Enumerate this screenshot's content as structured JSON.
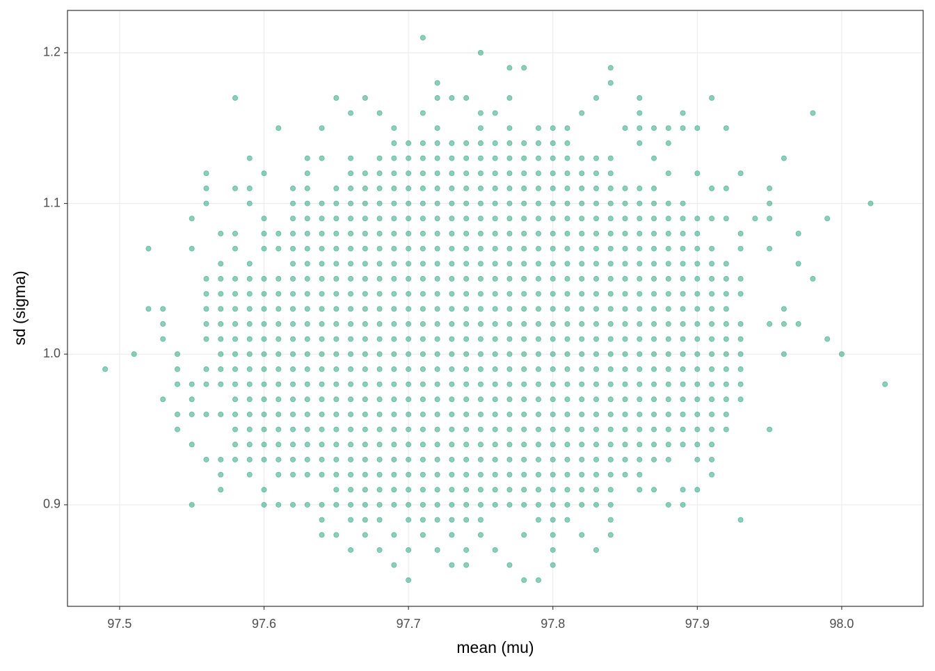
{
  "chart_data": {
    "type": "scatter",
    "x_label": "mean (mu)",
    "y_label": "sd (sigma)",
    "color": "#1b9e77",
    "grid": true,
    "xlim": [
      97.4639,
      98.0564
    ],
    "ylim": [
      0.8326,
      1.2281
    ],
    "xticks": [
      97.5,
      97.6,
      97.7,
      97.8,
      97.9,
      {
        "value": 98,
        "label": "98.0"
      }
    ],
    "yticks": [
      0.9,
      {
        "value": 1,
        "label": "1.0"
      },
      1.1,
      1.2
    ],
    "rows": [
      {
        "y": 1.21,
        "x": [
          97.71
        ]
      },
      {
        "y": 1.2,
        "x": [
          97.75
        ]
      },
      {
        "y": 1.19,
        "x": [
          97.77,
          97.78,
          97.84
        ]
      },
      {
        "y": 1.18,
        "x": [
          97.72,
          97.84
        ]
      },
      {
        "y": 1.17,
        "x": [
          97.58,
          97.65,
          97.67,
          97.72,
          97.73,
          97.74,
          97.77,
          97.83,
          97.86,
          97.91
        ]
      },
      {
        "y": 1.16,
        "x": [
          97.66,
          97.68,
          97.71,
          97.75,
          97.76,
          97.82,
          97.86,
          97.89,
          97.98
        ]
      },
      {
        "y": 1.15,
        "x": [
          97.61,
          97.64,
          97.69,
          97.72,
          97.75,
          97.77,
          97.79,
          97.8,
          97.81,
          97.85,
          97.86,
          97.87,
          97.88,
          97.89,
          97.9,
          97.92
        ]
      },
      {
        "y": 1.14,
        "x": [
          97.69,
          97.7,
          97.71,
          97.72,
          97.73,
          97.74,
          97.75,
          97.76,
          97.77,
          97.78,
          97.79,
          97.8,
          97.81,
          97.86,
          97.88
        ]
      },
      {
        "y": 1.13,
        "x": [
          97.59,
          97.63,
          97.64,
          97.66,
          97.68,
          97.69,
          97.7,
          97.71,
          97.72,
          97.73,
          97.74,
          97.75,
          97.76,
          97.77,
          97.78,
          97.79,
          97.8,
          97.81,
          97.82,
          97.83,
          97.84,
          97.87,
          97.96
        ]
      },
      {
        "y": 1.12,
        "x": [
          97.56,
          97.6,
          97.63,
          97.66,
          97.67,
          97.68,
          97.69,
          97.7,
          97.71,
          97.72,
          97.73,
          97.74,
          97.75,
          97.76,
          97.77,
          97.78,
          97.79,
          97.8,
          97.81,
          97.82,
          97.83,
          97.84,
          97.88,
          97.9,
          97.93
        ]
      },
      {
        "y": 1.11,
        "x": [
          97.56,
          97.58,
          97.59,
          97.62,
          97.63,
          97.65,
          97.66,
          97.67,
          97.68,
          97.69,
          97.7,
          97.71,
          97.72,
          97.73,
          97.74,
          97.75,
          97.76,
          97.77,
          97.78,
          97.79,
          97.8,
          97.81,
          97.82,
          97.83,
          97.84,
          97.85,
          97.86,
          97.87,
          97.91,
          97.92,
          97.95
        ]
      },
      {
        "y": 1.1,
        "x": [
          97.56,
          97.59,
          97.62,
          97.63,
          97.64,
          97.65,
          97.66,
          97.67,
          97.68,
          97.69,
          97.7,
          97.71,
          97.72,
          97.73,
          97.74,
          97.75,
          97.76,
          97.77,
          97.78,
          97.79,
          97.8,
          97.81,
          97.82,
          97.83,
          97.84,
          97.85,
          97.86,
          97.87,
          97.88,
          97.89,
          97.95,
          98.02
        ]
      },
      {
        "y": 1.09,
        "x": [
          97.55,
          97.6,
          97.62,
          97.63,
          97.64,
          97.65,
          97.66,
          97.67,
          97.68,
          97.69,
          97.7,
          97.71,
          97.72,
          97.73,
          97.74,
          97.75,
          97.76,
          97.77,
          97.78,
          97.79,
          97.8,
          97.81,
          97.82,
          97.83,
          97.84,
          97.85,
          97.86,
          97.87,
          97.88,
          97.89,
          97.9,
          97.91,
          97.92,
          97.94,
          97.95,
          97.99
        ]
      },
      {
        "y": 1.08,
        "x": [
          97.57,
          97.58,
          97.6,
          97.61,
          97.62,
          97.63,
          97.64,
          97.65,
          97.66,
          97.67,
          97.68,
          97.69,
          97.7,
          97.71,
          97.72,
          97.73,
          97.74,
          97.75,
          97.76,
          97.77,
          97.78,
          97.79,
          97.8,
          97.81,
          97.82,
          97.83,
          97.84,
          97.85,
          97.86,
          97.87,
          97.88,
          97.89,
          97.9,
          97.93,
          97.97
        ]
      },
      {
        "y": 1.07,
        "x": [
          97.52,
          97.55,
          97.58,
          97.6,
          97.61,
          97.62,
          97.63,
          97.64,
          97.65,
          97.66,
          97.67,
          97.68,
          97.69,
          97.7,
          97.71,
          97.72,
          97.73,
          97.74,
          97.75,
          97.76,
          97.77,
          97.78,
          97.79,
          97.8,
          97.81,
          97.82,
          97.83,
          97.84,
          97.85,
          97.86,
          97.87,
          97.88,
          97.89,
          97.9,
          97.91,
          97.93,
          97.95
        ]
      },
      {
        "y": 1.06,
        "x": [
          97.57,
          97.59,
          97.62,
          97.63,
          97.64,
          97.65,
          97.66,
          97.67,
          97.68,
          97.69,
          97.7,
          97.71,
          97.72,
          97.73,
          97.74,
          97.75,
          97.76,
          97.77,
          97.78,
          97.79,
          97.8,
          97.81,
          97.82,
          97.83,
          97.84,
          97.85,
          97.86,
          97.87,
          97.88,
          97.89,
          97.9,
          97.91,
          97.92,
          97.97
        ]
      },
      {
        "y": 1.05,
        "x": [
          97.56,
          97.57,
          97.58,
          97.59,
          97.6,
          97.61,
          97.62,
          97.63,
          97.64,
          97.65,
          97.66,
          97.67,
          97.68,
          97.69,
          97.7,
          97.71,
          97.72,
          97.73,
          97.74,
          97.75,
          97.76,
          97.77,
          97.78,
          97.79,
          97.8,
          97.81,
          97.82,
          97.83,
          97.84,
          97.85,
          97.86,
          97.87,
          97.88,
          97.89,
          97.9,
          97.91,
          97.92,
          97.93,
          97.98
        ]
      },
      {
        "y": 1.04,
        "x": [
          97.56,
          97.57,
          97.58,
          97.59,
          97.6,
          97.61,
          97.62,
          97.63,
          97.64,
          97.65,
          97.66,
          97.67,
          97.68,
          97.69,
          97.7,
          97.71,
          97.72,
          97.73,
          97.74,
          97.75,
          97.76,
          97.77,
          97.78,
          97.79,
          97.8,
          97.81,
          97.82,
          97.83,
          97.84,
          97.85,
          97.86,
          97.87,
          97.88,
          97.89,
          97.9,
          97.91,
          97.92,
          97.93
        ]
      },
      {
        "y": 1.03,
        "x": [
          97.52,
          97.53,
          97.56,
          97.57,
          97.58,
          97.59,
          97.6,
          97.61,
          97.62,
          97.63,
          97.64,
          97.65,
          97.66,
          97.67,
          97.68,
          97.69,
          97.7,
          97.71,
          97.72,
          97.73,
          97.74,
          97.75,
          97.76,
          97.77,
          97.78,
          97.79,
          97.8,
          97.81,
          97.82,
          97.83,
          97.84,
          97.85,
          97.86,
          97.87,
          97.88,
          97.89,
          97.9,
          97.91,
          97.92,
          97.96
        ]
      },
      {
        "y": 1.02,
        "x": [
          97.53,
          97.56,
          97.57,
          97.58,
          97.59,
          97.6,
          97.61,
          97.62,
          97.63,
          97.64,
          97.65,
          97.66,
          97.67,
          97.68,
          97.69,
          97.7,
          97.71,
          97.72,
          97.73,
          97.74,
          97.75,
          97.76,
          97.77,
          97.78,
          97.79,
          97.8,
          97.81,
          97.82,
          97.83,
          97.84,
          97.85,
          97.86,
          97.87,
          97.88,
          97.89,
          97.9,
          97.91,
          97.92,
          97.93,
          97.95,
          97.96,
          97.97
        ]
      },
      {
        "y": 1.01,
        "x": [
          97.53,
          97.56,
          97.57,
          97.58,
          97.59,
          97.6,
          97.61,
          97.62,
          97.63,
          97.64,
          97.65,
          97.66,
          97.67,
          97.68,
          97.69,
          97.7,
          97.71,
          97.72,
          97.73,
          97.74,
          97.75,
          97.76,
          97.77,
          97.78,
          97.79,
          97.8,
          97.81,
          97.82,
          97.83,
          97.84,
          97.85,
          97.86,
          97.87,
          97.88,
          97.89,
          97.9,
          97.91,
          97.92,
          97.93,
          97.99
        ]
      },
      {
        "y": 1.0,
        "x": [
          97.51,
          97.54,
          97.57,
          97.58,
          97.59,
          97.6,
          97.61,
          97.62,
          97.63,
          97.64,
          97.65,
          97.66,
          97.67,
          97.68,
          97.69,
          97.7,
          97.71,
          97.72,
          97.73,
          97.74,
          97.75,
          97.76,
          97.77,
          97.78,
          97.79,
          97.8,
          97.81,
          97.82,
          97.83,
          97.84,
          97.85,
          97.86,
          97.87,
          97.88,
          97.89,
          97.9,
          97.91,
          97.92,
          97.93,
          97.96,
          98.0
        ]
      },
      {
        "y": 0.99,
        "x": [
          97.49,
          97.54,
          97.56,
          97.57,
          97.58,
          97.59,
          97.6,
          97.61,
          97.62,
          97.63,
          97.64,
          97.65,
          97.66,
          97.67,
          97.68,
          97.69,
          97.7,
          97.71,
          97.72,
          97.73,
          97.74,
          97.75,
          97.76,
          97.77,
          97.78,
          97.79,
          97.8,
          97.81,
          97.82,
          97.83,
          97.84,
          97.85,
          97.86,
          97.87,
          97.88,
          97.89,
          97.9,
          97.91,
          97.92,
          97.93
        ]
      },
      {
        "y": 0.98,
        "x": [
          97.54,
          97.55,
          97.56,
          97.57,
          97.58,
          97.59,
          97.6,
          97.61,
          97.62,
          97.63,
          97.64,
          97.65,
          97.66,
          97.67,
          97.68,
          97.69,
          97.7,
          97.71,
          97.72,
          97.73,
          97.74,
          97.75,
          97.76,
          97.77,
          97.78,
          97.79,
          97.8,
          97.81,
          97.82,
          97.83,
          97.84,
          97.85,
          97.86,
          97.87,
          97.88,
          97.89,
          97.9,
          97.91,
          97.92,
          97.93,
          98.03
        ]
      },
      {
        "y": 0.97,
        "x": [
          97.53,
          97.55,
          97.58,
          97.59,
          97.6,
          97.61,
          97.62,
          97.63,
          97.64,
          97.65,
          97.66,
          97.67,
          97.68,
          97.69,
          97.7,
          97.71,
          97.72,
          97.73,
          97.74,
          97.75,
          97.76,
          97.77,
          97.78,
          97.79,
          97.8,
          97.81,
          97.82,
          97.83,
          97.84,
          97.85,
          97.86,
          97.87,
          97.88,
          97.89,
          97.9,
          97.91,
          97.92,
          97.93
        ]
      },
      {
        "y": 0.96,
        "x": [
          97.54,
          97.55,
          97.56,
          97.57,
          97.58,
          97.59,
          97.6,
          97.61,
          97.62,
          97.63,
          97.64,
          97.65,
          97.66,
          97.67,
          97.68,
          97.69,
          97.7,
          97.71,
          97.72,
          97.73,
          97.74,
          97.75,
          97.76,
          97.77,
          97.78,
          97.79,
          97.8,
          97.81,
          97.82,
          97.83,
          97.84,
          97.85,
          97.86,
          97.87,
          97.88,
          97.89,
          97.9,
          97.91,
          97.92
        ]
      },
      {
        "y": 0.95,
        "x": [
          97.54,
          97.58,
          97.59,
          97.6,
          97.61,
          97.62,
          97.63,
          97.64,
          97.65,
          97.66,
          97.67,
          97.68,
          97.69,
          97.7,
          97.71,
          97.72,
          97.73,
          97.74,
          97.75,
          97.76,
          97.77,
          97.78,
          97.79,
          97.8,
          97.81,
          97.82,
          97.83,
          97.84,
          97.85,
          97.86,
          97.87,
          97.88,
          97.89,
          97.9,
          97.91,
          97.92,
          97.95
        ]
      },
      {
        "y": 0.94,
        "x": [
          97.55,
          97.58,
          97.59,
          97.6,
          97.61,
          97.62,
          97.63,
          97.64,
          97.65,
          97.66,
          97.67,
          97.68,
          97.69,
          97.7,
          97.71,
          97.72,
          97.73,
          97.74,
          97.75,
          97.76,
          97.77,
          97.78,
          97.79,
          97.8,
          97.81,
          97.82,
          97.83,
          97.84,
          97.85,
          97.86,
          97.87,
          97.88,
          97.89,
          97.9,
          97.91
        ]
      },
      {
        "y": 0.93,
        "x": [
          97.56,
          97.57,
          97.58,
          97.59,
          97.6,
          97.61,
          97.62,
          97.63,
          97.64,
          97.65,
          97.66,
          97.67,
          97.68,
          97.69,
          97.7,
          97.71,
          97.72,
          97.73,
          97.74,
          97.75,
          97.76,
          97.77,
          97.78,
          97.79,
          97.8,
          97.81,
          97.82,
          97.83,
          97.84,
          97.85,
          97.86,
          97.87,
          97.88,
          97.9,
          97.91
        ]
      },
      {
        "y": 0.92,
        "x": [
          97.57,
          97.59,
          97.61,
          97.62,
          97.63,
          97.64,
          97.65,
          97.66,
          97.67,
          97.68,
          97.69,
          97.7,
          97.71,
          97.72,
          97.73,
          97.74,
          97.75,
          97.76,
          97.77,
          97.78,
          97.79,
          97.8,
          97.81,
          97.82,
          97.83,
          97.84,
          97.85,
          97.86,
          97.91
        ]
      },
      {
        "y": 0.91,
        "x": [
          97.57,
          97.6,
          97.65,
          97.66,
          97.67,
          97.68,
          97.69,
          97.7,
          97.71,
          97.72,
          97.73,
          97.74,
          97.75,
          97.76,
          97.77,
          97.78,
          97.79,
          97.8,
          97.81,
          97.82,
          97.83,
          97.84,
          97.86,
          97.87,
          97.89,
          97.9
        ]
      },
      {
        "y": 0.9,
        "x": [
          97.55,
          97.6,
          97.61,
          97.62,
          97.63,
          97.64,
          97.65,
          97.66,
          97.67,
          97.68,
          97.69,
          97.7,
          97.71,
          97.72,
          97.73,
          97.74,
          97.75,
          97.76,
          97.77,
          97.78,
          97.79,
          97.8,
          97.81,
          97.82,
          97.83,
          97.84,
          97.88,
          97.89
        ]
      },
      {
        "y": 0.89,
        "x": [
          97.64,
          97.66,
          97.67,
          97.68,
          97.7,
          97.71,
          97.72,
          97.73,
          97.74,
          97.75,
          97.79,
          97.8,
          97.81,
          97.84,
          97.93
        ]
      },
      {
        "y": 0.88,
        "x": [
          97.64,
          97.65,
          97.67,
          97.69,
          97.71,
          97.73,
          97.75,
          97.78,
          97.8,
          97.82,
          97.84
        ]
      },
      {
        "y": 0.87,
        "x": [
          97.66,
          97.68,
          97.7,
          97.72,
          97.74,
          97.76,
          97.8,
          97.83
        ]
      },
      {
        "y": 0.86,
        "x": [
          97.69,
          97.73,
          97.74,
          97.77,
          97.8
        ]
      },
      {
        "y": 0.85,
        "x": [
          97.7,
          97.78,
          97.79
        ]
      }
    ]
  }
}
